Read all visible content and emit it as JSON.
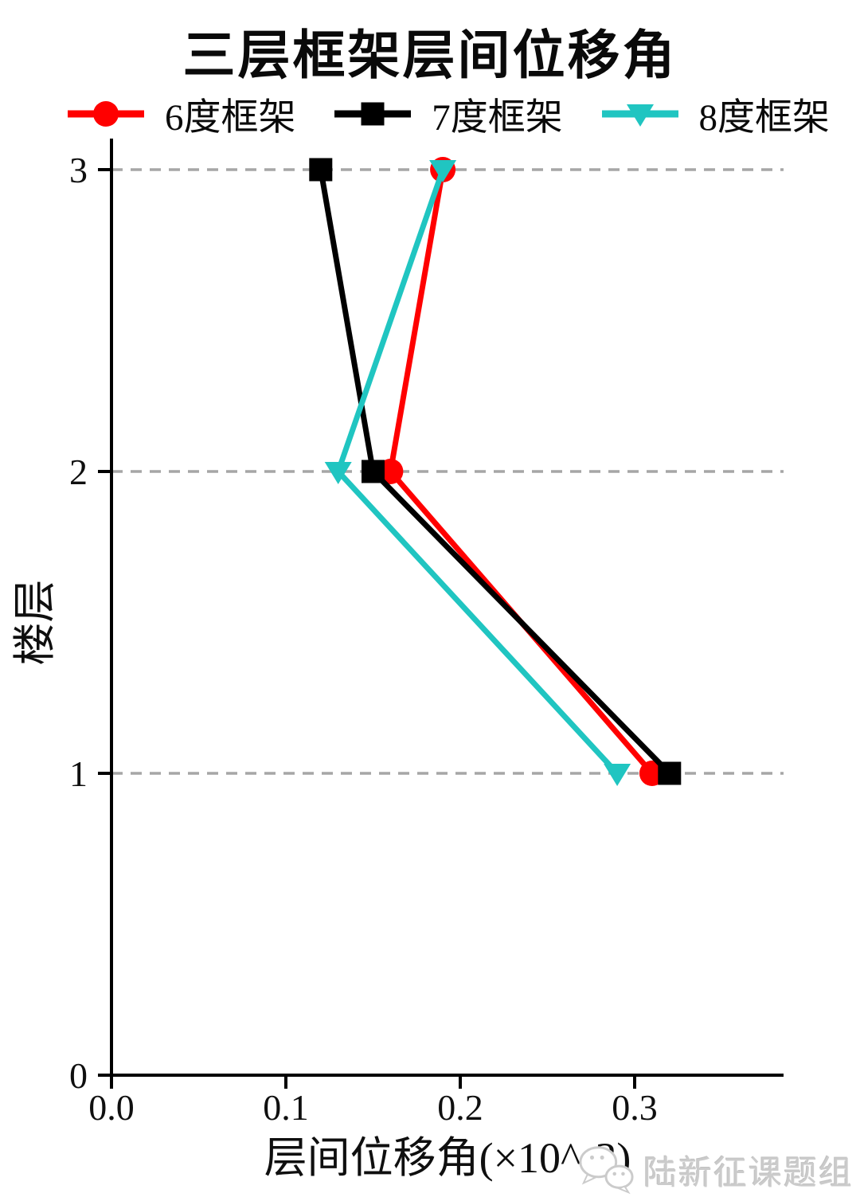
{
  "chart_data": {
    "type": "line",
    "title": "三层框架层间位移角",
    "xlabel": "层间位移角(×10^-3)",
    "ylabel": "楼层",
    "x_ticks": [
      0.0,
      0.1,
      0.2,
      0.3
    ],
    "x_tick_labels": [
      "0.0",
      "0.1",
      "0.2",
      "0.3"
    ],
    "y_ticks": [
      0,
      1,
      2,
      3
    ],
    "y_tick_labels": [
      "0",
      "1",
      "2",
      "3"
    ],
    "xlim": [
      0,
      0.385
    ],
    "ylim": [
      0,
      3.1
    ],
    "grid": "horizontal-dashed",
    "grid_color": "#a6a6a6",
    "axis_color": "#000000",
    "legend_position": "top",
    "series": [
      {
        "name": "6度框架",
        "color": "#ff0000",
        "marker": "circle",
        "floors": [
          1,
          2,
          3
        ],
        "values": [
          0.31,
          0.16,
          0.19
        ]
      },
      {
        "name": "7度框架",
        "color": "#000000",
        "marker": "square",
        "floors": [
          1,
          2,
          3
        ],
        "values": [
          0.32,
          0.15,
          0.12
        ]
      },
      {
        "name": "8度框架",
        "color": "#20c5c1",
        "marker": "triangle-down",
        "floors": [
          1,
          2,
          3
        ],
        "values": [
          0.29,
          0.13,
          0.19
        ]
      }
    ]
  },
  "watermark": {
    "text": "陆新征课题组",
    "icon": "wechat-icon",
    "color": "#cbcbcb"
  }
}
